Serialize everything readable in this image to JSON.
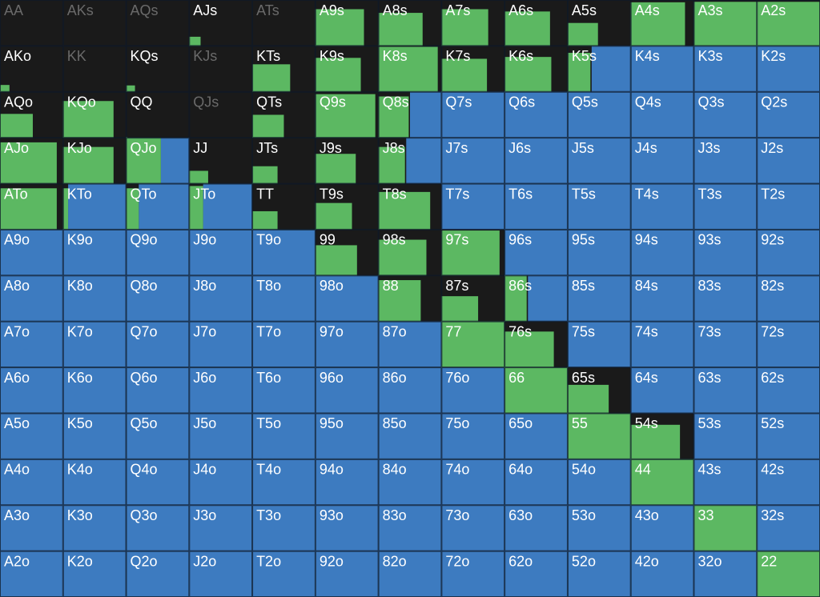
{
  "rows": [
    [
      [
        "AA",
        0,
        0,
        0
      ],
      [
        "AKs",
        0,
        0,
        0
      ],
      [
        "AQs",
        0,
        0,
        0
      ],
      [
        "AJs",
        0.18,
        0.2,
        0
      ],
      [
        "ATs",
        0,
        0,
        0
      ],
      [
        "A9s",
        0.77,
        0.8,
        0
      ],
      [
        "A8s",
        0.7,
        0.72,
        0
      ],
      [
        "A7s",
        0.74,
        0.8,
        0
      ],
      [
        "A6s",
        0.72,
        0.75,
        0
      ],
      [
        "A5s",
        0.48,
        0.5,
        0
      ],
      [
        "A4s",
        0.86,
        0.95,
        0
      ],
      [
        "A3s",
        1,
        0.96,
        0
      ],
      [
        "A2s",
        1,
        0.96,
        0
      ]
    ],
    [
      [
        "AKo",
        0.15,
        0.15,
        0
      ],
      [
        "KK",
        0,
        0,
        0
      ],
      [
        "KQs",
        0.14,
        0.14,
        0
      ],
      [
        "KJs",
        0,
        0,
        0
      ],
      [
        "KTs",
        0.6,
        0.6,
        0
      ],
      [
        "K9s",
        0.72,
        0.74,
        0
      ],
      [
        "K8s",
        0.94,
        0.98,
        0
      ],
      [
        "K7s",
        0.72,
        0.72,
        0
      ],
      [
        "K6s",
        0.74,
        0.76,
        0
      ],
      [
        "K5s",
        0.36,
        0.85,
        0.62
      ],
      [
        "K4s",
        0,
        0,
        1
      ],
      [
        "K3s",
        0,
        0,
        1
      ],
      [
        "K2s",
        0,
        0,
        1
      ]
    ],
    [
      [
        "AQo",
        0.52,
        0.52,
        0
      ],
      [
        "KQo",
        0.8,
        0.8,
        0
      ],
      [
        "QQ",
        0.02,
        0.02,
        0
      ],
      [
        "QJs",
        0,
        0,
        0
      ],
      [
        "QTs",
        0.5,
        0.5,
        0
      ],
      [
        "Q9s",
        0.95,
        0.95,
        0
      ],
      [
        "Q8s",
        0.48,
        0.9,
        0.5
      ],
      [
        "Q7s",
        0,
        0,
        1
      ],
      [
        "Q6s",
        0,
        0,
        1
      ],
      [
        "Q5s",
        0,
        0,
        1
      ],
      [
        "Q4s",
        0,
        0,
        1
      ],
      [
        "Q3s",
        0,
        0,
        1
      ],
      [
        "Q2s",
        0,
        0,
        1
      ]
    ],
    [
      [
        "AJo",
        0.9,
        0.9,
        0
      ],
      [
        "KJo",
        0.8,
        0.8,
        0
      ],
      [
        "QJo",
        0.55,
        1,
        0.45
      ],
      [
        "JJ",
        0.3,
        0.28,
        0
      ],
      [
        "JTs",
        0.4,
        0.38,
        0
      ],
      [
        "J9s",
        0.64,
        0.65,
        0
      ],
      [
        "J8s",
        0.42,
        0.8,
        0.56
      ],
      [
        "J7s",
        0,
        0,
        1
      ],
      [
        "J6s",
        0,
        0,
        1
      ],
      [
        "J5s",
        0,
        0,
        1
      ],
      [
        "J4s",
        0,
        0,
        1
      ],
      [
        "J3s",
        0,
        0,
        1
      ],
      [
        "J2s",
        0,
        0,
        1
      ]
    ],
    [
      [
        "ATo",
        0.9,
        0.9,
        0
      ],
      [
        "KTo",
        0.08,
        0.9,
        0.92
      ],
      [
        "QTo",
        0.2,
        0.9,
        0.8
      ],
      [
        "JTo",
        0.22,
        0.95,
        0.78
      ],
      [
        "TT",
        0.4,
        0.4,
        0
      ],
      [
        "T9s",
        0.58,
        0.58,
        0
      ],
      [
        "T8s",
        0.82,
        0.82,
        0
      ],
      [
        "T7s",
        0,
        0,
        1
      ],
      [
        "T6s",
        0,
        0,
        1
      ],
      [
        "T5s",
        0,
        0,
        1
      ],
      [
        "T4s",
        0,
        0,
        1
      ],
      [
        "T3s",
        0,
        0,
        1
      ],
      [
        "T2s",
        0,
        0,
        1
      ]
    ],
    [
      [
        "A9o",
        0,
        0,
        1
      ],
      [
        "K9o",
        0,
        0,
        1
      ],
      [
        "Q9o",
        0,
        0,
        1
      ],
      [
        "J9o",
        0,
        0,
        1
      ],
      [
        "T9o",
        0,
        0,
        1
      ],
      [
        "99",
        0.66,
        0.66,
        0
      ],
      [
        "98s",
        0.76,
        0.78,
        0
      ],
      [
        "97s",
        0.92,
        0.98,
        0
      ],
      [
        "96s",
        0,
        0,
        1
      ],
      [
        "95s",
        0,
        0,
        1
      ],
      [
        "94s",
        0,
        0,
        1
      ],
      [
        "93s",
        0,
        0,
        1
      ],
      [
        "92s",
        0,
        0,
        1
      ]
    ],
    [
      [
        "A8o",
        0,
        0,
        1
      ],
      [
        "K8o",
        0,
        0,
        1
      ],
      [
        "Q8o",
        0,
        0,
        1
      ],
      [
        "J8o",
        0,
        0,
        1
      ],
      [
        "T8o",
        0,
        0,
        1
      ],
      [
        "98o",
        0,
        0,
        1
      ],
      [
        "88",
        0.67,
        0.9,
        0
      ],
      [
        "87s",
        0.58,
        0.55,
        0
      ],
      [
        "86s",
        0.35,
        1,
        0.63
      ],
      [
        "85s",
        0,
        0,
        1
      ],
      [
        "84s",
        0,
        0,
        1
      ],
      [
        "83s",
        0,
        0,
        1
      ],
      [
        "82s",
        0,
        0,
        1
      ]
    ],
    [
      [
        "A7o",
        0,
        0,
        1
      ],
      [
        "K7o",
        0,
        0,
        1
      ],
      [
        "Q7o",
        0,
        0,
        1
      ],
      [
        "J7o",
        0,
        0,
        1
      ],
      [
        "T7o",
        0,
        0,
        1
      ],
      [
        "97o",
        0,
        0,
        1
      ],
      [
        "87o",
        0,
        0,
        1
      ],
      [
        "77",
        1,
        1,
        0
      ],
      [
        "76s",
        0.78,
        0.78,
        0
      ],
      [
        "75s",
        0,
        0,
        1
      ],
      [
        "74s",
        0,
        0,
        1
      ],
      [
        "73s",
        0,
        0,
        1
      ],
      [
        "72s",
        0,
        0,
        1
      ]
    ],
    [
      [
        "A6o",
        0,
        0,
        1
      ],
      [
        "K6o",
        0,
        0,
        1
      ],
      [
        "Q6o",
        0,
        0,
        1
      ],
      [
        "J6o",
        0,
        0,
        1
      ],
      [
        "T6o",
        0,
        0,
        1
      ],
      [
        "96o",
        0,
        0,
        1
      ],
      [
        "86o",
        0,
        0,
        1
      ],
      [
        "76o",
        0,
        0,
        1
      ],
      [
        "66",
        1,
        1,
        0
      ],
      [
        "65s",
        0.65,
        0.62,
        0
      ],
      [
        "64s",
        0,
        0,
        1
      ],
      [
        "63s",
        0,
        0,
        1
      ],
      [
        "62s",
        0,
        0,
        1
      ]
    ],
    [
      [
        "A5o",
        0,
        0,
        1
      ],
      [
        "K5o",
        0,
        0,
        1
      ],
      [
        "Q5o",
        0,
        0,
        1
      ],
      [
        "J5o",
        0,
        0,
        1
      ],
      [
        "T5o",
        0,
        0,
        1
      ],
      [
        "95o",
        0,
        0,
        1
      ],
      [
        "85o",
        0,
        0,
        1
      ],
      [
        "75o",
        0,
        0,
        1
      ],
      [
        "65o",
        0,
        0,
        1
      ],
      [
        "55",
        1,
        1,
        0
      ],
      [
        "54s",
        0.78,
        0.75,
        0
      ],
      [
        "53s",
        0,
        0,
        1
      ],
      [
        "52s",
        0,
        0,
        1
      ]
    ],
    [
      [
        "A4o",
        0,
        0,
        1
      ],
      [
        "K4o",
        0,
        0,
        1
      ],
      [
        "Q4o",
        0,
        0,
        1
      ],
      [
        "J4o",
        0,
        0,
        1
      ],
      [
        "T4o",
        0,
        0,
        1
      ],
      [
        "94o",
        0,
        0,
        1
      ],
      [
        "84o",
        0,
        0,
        1
      ],
      [
        "74o",
        0,
        0,
        1
      ],
      [
        "64o",
        0,
        0,
        1
      ],
      [
        "54o",
        0,
        0,
        1
      ],
      [
        "44",
        1,
        1,
        0
      ],
      [
        "43s",
        0,
        0,
        1
      ],
      [
        "42s",
        0,
        0,
        1
      ]
    ],
    [
      [
        "A3o",
        0,
        0,
        1
      ],
      [
        "K3o",
        0,
        0,
        1
      ],
      [
        "Q3o",
        0,
        0,
        1
      ],
      [
        "J3o",
        0,
        0,
        1
      ],
      [
        "T3o",
        0,
        0,
        1
      ],
      [
        "93o",
        0,
        0,
        1
      ],
      [
        "83o",
        0,
        0,
        1
      ],
      [
        "73o",
        0,
        0,
        1
      ],
      [
        "63o",
        0,
        0,
        1
      ],
      [
        "53o",
        0,
        0,
        1
      ],
      [
        "43o",
        0,
        0,
        1
      ],
      [
        "33",
        1,
        1,
        0
      ],
      [
        "32s",
        0,
        0,
        1
      ]
    ],
    [
      [
        "A2o",
        0,
        0,
        1
      ],
      [
        "K2o",
        0,
        0,
        1
      ],
      [
        "Q2o",
        0,
        0,
        1
      ],
      [
        "J2o",
        0,
        0,
        1
      ],
      [
        "T2o",
        0,
        0,
        1
      ],
      [
        "92o",
        0,
        0,
        1
      ],
      [
        "82o",
        0,
        0,
        1
      ],
      [
        "72o",
        0,
        0,
        1
      ],
      [
        "62o",
        0,
        0,
        1
      ],
      [
        "52o",
        0,
        0,
        1
      ],
      [
        "42o",
        0,
        0,
        1
      ],
      [
        "32o",
        0,
        0,
        1
      ],
      [
        "22",
        1,
        1,
        0
      ]
    ]
  ]
}
